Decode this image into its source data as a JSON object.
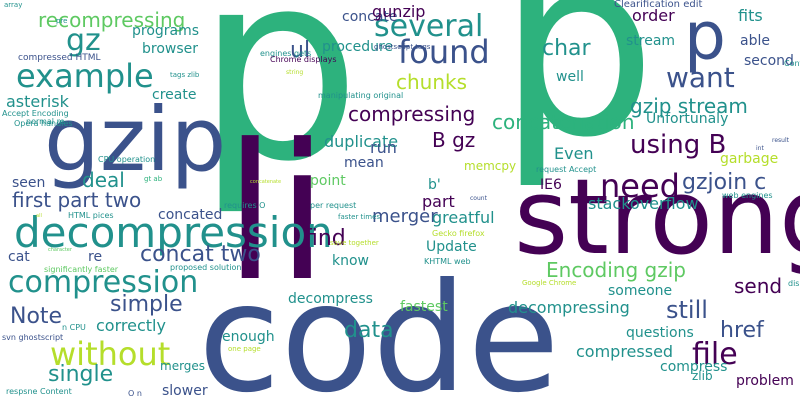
{
  "colors": {
    "background": "#ffffff",
    "palette": [
      "#440154",
      "#3b528b",
      "#21918c",
      "#2db27d",
      "#5ec962",
      "#b5de2b",
      "#fde725"
    ]
  },
  "words": [
    "p",
    "p",
    "p",
    "li",
    "strong",
    "code",
    "gzip",
    "decompression",
    "example",
    "compression",
    "several",
    "found",
    "want",
    "need",
    "without",
    "file",
    "recompressing",
    "gz",
    "first part two",
    "concat two",
    "using B",
    "Encoding gzip",
    "gzip stream",
    "chunks",
    "compressing",
    "gzjoin c",
    "concatenation",
    "simple",
    "still",
    "send",
    "href",
    "Note",
    "data",
    "single",
    "correctly",
    "deal",
    "duplicate",
    "merger",
    "find",
    "run",
    "mean",
    "point",
    "ul",
    "char",
    "order",
    "fits",
    "able",
    "second",
    "stream",
    "Unfortunaly",
    "well",
    "Even",
    "IE6",
    "stackoverflow",
    "greatful",
    "part",
    "concated",
    "Update",
    "know",
    "asterisk",
    "create",
    "programs",
    "browser",
    "procedure",
    "concate",
    "gunzip",
    "Clearification edit",
    "B gz",
    "b'",
    "memcpy",
    "garbage",
    "compressed",
    "compress",
    "zlib",
    "problem",
    "someone",
    "questions",
    "decompressing",
    "fastest",
    "enough",
    "merges",
    "slower",
    "decompress",
    "re",
    "cat",
    "seen",
    "Content Encoding",
    "display anything",
    "array",
    "pre",
    "compressed HTML",
    "tags zlib",
    "engines gets",
    "Chrome displays",
    "ghostscript tags",
    "string",
    "manipulating original",
    "CPU operation",
    "gt ab",
    "HTML pices",
    "requires O",
    "per request",
    "faster times",
    "save together",
    "Gecko firefox",
    "KHTML web",
    "Google Chrome",
    "proposed solution",
    "significantly faster",
    "n CPU",
    "svn ghostscript",
    "one page",
    "respsne Content",
    "O n",
    "Opera handles",
    "Accept Encoding",
    "normal re",
    "web engines",
    "request Accept",
    "result",
    "int",
    "count",
    "concatenate",
    "character",
    "all"
  ]
}
